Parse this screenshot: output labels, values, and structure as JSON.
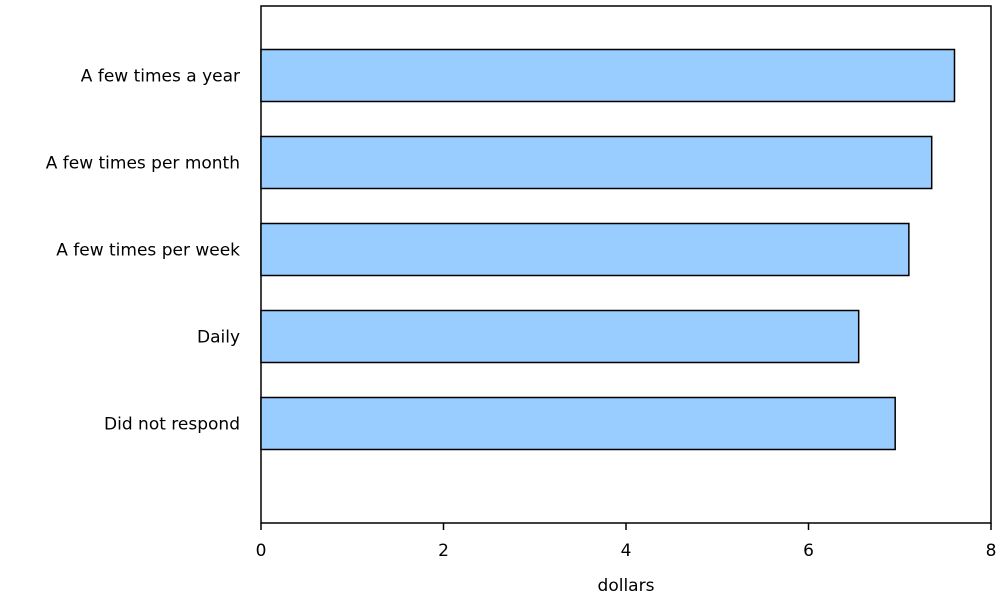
{
  "chart_data": {
    "type": "bar",
    "orientation": "horizontal",
    "categories": [
      "A few times a year",
      "A few times per month",
      "A few times per week",
      "Daily",
      "Did not respond"
    ],
    "values": [
      7.6,
      7.35,
      7.1,
      6.55,
      6.95
    ],
    "xlabel": "dollars",
    "xlim": [
      0,
      8
    ],
    "xticks": [
      "0",
      "2",
      "4",
      "6",
      "8"
    ],
    "grid": false,
    "colors": {
      "bar_fill": "#99ccff",
      "bar_stroke": "#000000",
      "axis": "#000000"
    }
  }
}
